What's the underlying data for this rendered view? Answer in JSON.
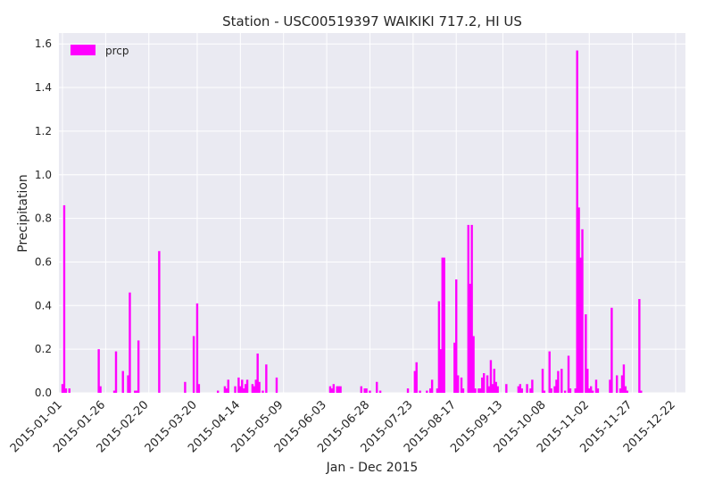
{
  "chart_data": {
    "type": "bar",
    "title": "Station - USC00519397 WAIKIKI 717.2, HI US",
    "xlabel": "Jan - Dec 2015",
    "ylabel": "Precipitation",
    "ylim": [
      0,
      1.65
    ],
    "yticks": [
      "0.0",
      "0.2",
      "0.4",
      "0.6",
      "0.8",
      "1.0",
      "1.2",
      "1.4",
      "1.6"
    ],
    "xticks": [
      "2015-01-01",
      "2015-01-26",
      "2015-02-20",
      "2015-03-20",
      "2015-04-14",
      "2015-05-09",
      "2015-06-03",
      "2015-06-28",
      "2015-07-23",
      "2015-08-17",
      "2015-09-13",
      "2015-10-08",
      "2015-11-02",
      "2015-11-27",
      "2015-12-22"
    ],
    "grid": true,
    "legend_position": "top-left",
    "colors": {
      "bar": "#ff00ff",
      "plot_bg": "#eaeaf2",
      "grid": "#ffffff"
    },
    "series": [
      {
        "name": "prcp",
        "points": [
          [
            "2015-01-01",
            0.04
          ],
          [
            "2015-01-02",
            0.86
          ],
          [
            "2015-01-03",
            0.02
          ],
          [
            "2015-01-05",
            0.02
          ],
          [
            "2015-01-22",
            0.2
          ],
          [
            "2015-01-23",
            0.03
          ],
          [
            "2015-01-31",
            0.01
          ],
          [
            "2015-02-01",
            0.19
          ],
          [
            "2015-02-05",
            0.1
          ],
          [
            "2015-02-08",
            0.08
          ],
          [
            "2015-02-09",
            0.46
          ],
          [
            "2015-02-12",
            0.01
          ],
          [
            "2015-02-13",
            0.01
          ],
          [
            "2015-02-14",
            0.24
          ],
          [
            "2015-02-26",
            0.65
          ],
          [
            "2015-03-13",
            0.05
          ],
          [
            "2015-03-18",
            0.26
          ],
          [
            "2015-03-20",
            0.41
          ],
          [
            "2015-03-21",
            0.04
          ],
          [
            "2015-04-01",
            0.01
          ],
          [
            "2015-04-05",
            0.03
          ],
          [
            "2015-04-06",
            0.02
          ],
          [
            "2015-04-07",
            0.06
          ],
          [
            "2015-04-11",
            0.03
          ],
          [
            "2015-04-13",
            0.07
          ],
          [
            "2015-04-14",
            0.03
          ],
          [
            "2015-04-15",
            0.06
          ],
          [
            "2015-04-16",
            0.02
          ],
          [
            "2015-04-17",
            0.04
          ],
          [
            "2015-04-18",
            0.06
          ],
          [
            "2015-04-21",
            0.04
          ],
          [
            "2015-04-22",
            0.03
          ],
          [
            "2015-04-23",
            0.06
          ],
          [
            "2015-04-24",
            0.18
          ],
          [
            "2015-04-25",
            0.05
          ],
          [
            "2015-04-27",
            0.01
          ],
          [
            "2015-04-29",
            0.13
          ],
          [
            "2015-05-05",
            0.07
          ],
          [
            "2015-06-05",
            0.03
          ],
          [
            "2015-06-06",
            0.02
          ],
          [
            "2015-06-07",
            0.04
          ],
          [
            "2015-06-09",
            0.03
          ],
          [
            "2015-06-10",
            0.03
          ],
          [
            "2015-06-11",
            0.03
          ],
          [
            "2015-06-23",
            0.03
          ],
          [
            "2015-06-25",
            0.02
          ],
          [
            "2015-06-26",
            0.02
          ],
          [
            "2015-06-28",
            0.01
          ],
          [
            "2015-07-02",
            0.05
          ],
          [
            "2015-07-04",
            0.01
          ],
          [
            "2015-07-20",
            0.02
          ],
          [
            "2015-07-24",
            0.1
          ],
          [
            "2015-07-25",
            0.14
          ],
          [
            "2015-07-27",
            0.01
          ],
          [
            "2015-07-31",
            0.01
          ],
          [
            "2015-08-02",
            0.02
          ],
          [
            "2015-08-03",
            0.06
          ],
          [
            "2015-08-06",
            0.02
          ],
          [
            "2015-08-07",
            0.42
          ],
          [
            "2015-08-08",
            0.2
          ],
          [
            "2015-08-09",
            0.62
          ],
          [
            "2015-08-10",
            0.62
          ],
          [
            "2015-08-16",
            0.23
          ],
          [
            "2015-08-17",
            0.52
          ],
          [
            "2015-08-18",
            0.08
          ],
          [
            "2015-08-20",
            0.07
          ],
          [
            "2015-08-21",
            0.02
          ],
          [
            "2015-08-24",
            0.77
          ],
          [
            "2015-08-25",
            0.5
          ],
          [
            "2015-08-26",
            0.77
          ],
          [
            "2015-08-27",
            0.26
          ],
          [
            "2015-08-28",
            0.02
          ],
          [
            "2015-08-30",
            0.02
          ],
          [
            "2015-08-31",
            0.02
          ],
          [
            "2015-09-01",
            0.07
          ],
          [
            "2015-09-02",
            0.09
          ],
          [
            "2015-09-04",
            0.08
          ],
          [
            "2015-09-05",
            0.03
          ],
          [
            "2015-09-06",
            0.15
          ],
          [
            "2015-09-07",
            0.04
          ],
          [
            "2015-09-08",
            0.11
          ],
          [
            "2015-09-09",
            0.05
          ],
          [
            "2015-09-10",
            0.03
          ],
          [
            "2015-09-15",
            0.04
          ],
          [
            "2015-09-22",
            0.03
          ],
          [
            "2015-09-23",
            0.04
          ],
          [
            "2015-09-24",
            0.02
          ],
          [
            "2015-09-27",
            0.04
          ],
          [
            "2015-09-29",
            0.02
          ],
          [
            "2015-09-30",
            0.06
          ],
          [
            "2015-10-06",
            0.11
          ],
          [
            "2015-10-07",
            0.01
          ],
          [
            "2015-10-10",
            0.19
          ],
          [
            "2015-10-11",
            0.02
          ],
          [
            "2015-10-13",
            0.03
          ],
          [
            "2015-10-14",
            0.06
          ],
          [
            "2015-10-15",
            0.1
          ],
          [
            "2015-10-17",
            0.11
          ],
          [
            "2015-10-19",
            0.01
          ],
          [
            "2015-10-21",
            0.17
          ],
          [
            "2015-10-22",
            0.02
          ],
          [
            "2015-10-25",
            0.02
          ],
          [
            "2015-10-26",
            1.57
          ],
          [
            "2015-10-27",
            0.85
          ],
          [
            "2015-10-28",
            0.62
          ],
          [
            "2015-10-29",
            0.75
          ],
          [
            "2015-10-31",
            0.36
          ],
          [
            "2015-11-01",
            0.11
          ],
          [
            "2015-11-02",
            0.02
          ],
          [
            "2015-11-03",
            0.03
          ],
          [
            "2015-11-04",
            0.01
          ],
          [
            "2015-11-06",
            0.06
          ],
          [
            "2015-11-07",
            0.02
          ],
          [
            "2015-11-14",
            0.06
          ],
          [
            "2015-11-15",
            0.39
          ],
          [
            "2015-11-18",
            0.08
          ],
          [
            "2015-11-20",
            0.02
          ],
          [
            "2015-11-21",
            0.08
          ],
          [
            "2015-11-22",
            0.13
          ],
          [
            "2015-11-23",
            0.03
          ],
          [
            "2015-11-24",
            0.01
          ],
          [
            "2015-12-01",
            0.43
          ],
          [
            "2015-12-02",
            0.01
          ]
        ]
      }
    ]
  }
}
